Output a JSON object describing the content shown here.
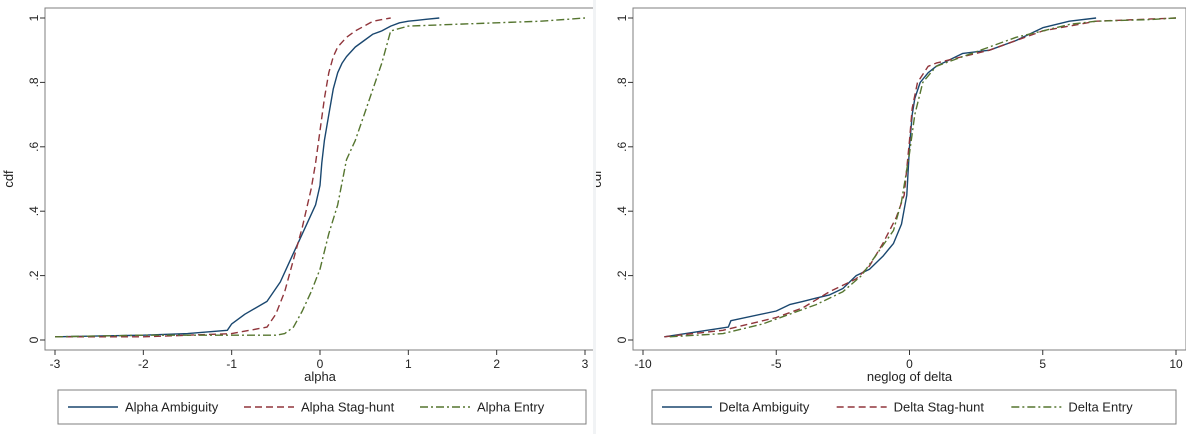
{
  "chart_data": [
    {
      "type": "line",
      "title": "",
      "xlabel": "alpha",
      "ylabel": "cdf",
      "xlim": [
        -3,
        3
      ],
      "ylim": [
        0,
        1
      ],
      "xticks": [
        "-3",
        "-2",
        "-1",
        "0",
        "1",
        "2",
        "3"
      ],
      "yticks": [
        "0",
        ".2",
        ".4",
        ".6",
        ".8",
        "1"
      ],
      "grid": false,
      "legend_position": "bottom",
      "series": [
        {
          "name": "Alpha Ambiguity",
          "color": "#1a476f",
          "dash": "solid",
          "x": [
            -3.0,
            -2.0,
            -1.5,
            -1.05,
            -1.0,
            -0.85,
            -0.6,
            -0.45,
            -0.35,
            -0.25,
            -0.15,
            -0.05,
            0.0,
            0.02,
            0.05,
            0.1,
            0.15,
            0.2,
            0.25,
            0.3,
            0.4,
            0.5,
            0.6,
            0.7,
            0.8,
            0.9,
            1.0,
            1.1,
            1.2,
            1.35
          ],
          "y": [
            0.01,
            0.015,
            0.02,
            0.03,
            0.05,
            0.08,
            0.12,
            0.18,
            0.24,
            0.3,
            0.36,
            0.42,
            0.48,
            0.55,
            0.62,
            0.7,
            0.78,
            0.83,
            0.86,
            0.88,
            0.91,
            0.93,
            0.95,
            0.96,
            0.975,
            0.985,
            0.99,
            0.993,
            0.996,
            1.0
          ]
        },
        {
          "name": "Alpha Stag-hunt",
          "color": "#90353b",
          "dash": "dash",
          "x": [
            -3.0,
            -2.0,
            -1.0,
            -0.6,
            -0.5,
            -0.4,
            -0.3,
            -0.2,
            -0.1,
            -0.05,
            0.0,
            0.05,
            0.1,
            0.15,
            0.2,
            0.3,
            0.4,
            0.5,
            0.6,
            0.7,
            0.8
          ],
          "y": [
            0.01,
            0.01,
            0.02,
            0.04,
            0.08,
            0.15,
            0.25,
            0.35,
            0.47,
            0.55,
            0.65,
            0.75,
            0.83,
            0.88,
            0.91,
            0.94,
            0.96,
            0.975,
            0.99,
            0.995,
            1.0
          ]
        },
        {
          "name": "Alpha Entry",
          "color": "#55752f",
          "dash": "dashdot",
          "x": [
            -3.0,
            -2.0,
            -1.0,
            -0.5,
            -0.4,
            -0.3,
            -0.2,
            -0.1,
            0.0,
            0.1,
            0.2,
            0.3,
            0.4,
            0.5,
            0.6,
            0.7,
            0.8,
            1.0,
            1.5,
            2.0,
            2.5,
            3.0
          ],
          "y": [
            0.01,
            0.015,
            0.015,
            0.015,
            0.02,
            0.04,
            0.09,
            0.15,
            0.22,
            0.33,
            0.42,
            0.56,
            0.62,
            0.7,
            0.78,
            0.86,
            0.96,
            0.975,
            0.98,
            0.985,
            0.99,
            1.0
          ]
        }
      ]
    },
    {
      "type": "line",
      "title": "",
      "xlabel": "neglog of delta",
      "ylabel": "cdf",
      "xlim": [
        -10,
        10
      ],
      "ylim": [
        0,
        1
      ],
      "xticks": [
        "-10",
        "-5",
        "0",
        "5",
        "10"
      ],
      "yticks": [
        "0",
        ".2",
        ".4",
        ".6",
        ".8",
        "1"
      ],
      "grid": false,
      "legend_position": "bottom",
      "series": [
        {
          "name": "Delta Ambiguity",
          "color": "#1a476f",
          "dash": "solid",
          "x": [
            -9.2,
            -8.0,
            -6.8,
            -6.7,
            -5.0,
            -4.5,
            -4.0,
            -3.5,
            -3.0,
            -2.5,
            -2.0,
            -1.5,
            -1.0,
            -0.6,
            -0.3,
            -0.1,
            0.0,
            0.1,
            0.2,
            0.4,
            0.7,
            1.0,
            1.5,
            2.0,
            3.0,
            4.0,
            5.0,
            6.0,
            7.0
          ],
          "y": [
            0.01,
            0.025,
            0.04,
            0.06,
            0.09,
            0.11,
            0.12,
            0.13,
            0.14,
            0.16,
            0.2,
            0.22,
            0.26,
            0.3,
            0.36,
            0.45,
            0.6,
            0.7,
            0.75,
            0.8,
            0.83,
            0.85,
            0.87,
            0.89,
            0.9,
            0.93,
            0.97,
            0.99,
            1.0
          ]
        },
        {
          "name": "Delta Stag-hunt",
          "color": "#90353b",
          "dash": "dash",
          "x": [
            -9.2,
            -7.0,
            -5.0,
            -4.0,
            -3.0,
            -2.5,
            -2.0,
            -1.5,
            -1.0,
            -0.5,
            -0.2,
            0.0,
            0.1,
            0.3,
            0.7,
            1.0,
            2.0,
            3.0,
            4.0,
            5.0,
            7.0,
            10.0
          ],
          "y": [
            0.01,
            0.03,
            0.07,
            0.1,
            0.15,
            0.17,
            0.19,
            0.23,
            0.3,
            0.38,
            0.45,
            0.62,
            0.72,
            0.8,
            0.85,
            0.86,
            0.88,
            0.9,
            0.93,
            0.96,
            0.99,
            1.0
          ]
        },
        {
          "name": "Delta Entry",
          "color": "#55752f",
          "dash": "dashdot",
          "x": [
            -9.0,
            -7.0,
            -5.5,
            -4.5,
            -3.5,
            -2.5,
            -1.8,
            -1.2,
            -0.6,
            -0.3,
            0.0,
            0.2,
            0.5,
            1.0,
            2.0,
            3.0,
            4.0,
            5.0,
            6.0,
            7.0,
            9.0,
            10.0
          ],
          "y": [
            0.01,
            0.02,
            0.05,
            0.08,
            0.11,
            0.15,
            0.2,
            0.27,
            0.34,
            0.43,
            0.58,
            0.7,
            0.8,
            0.85,
            0.88,
            0.91,
            0.94,
            0.96,
            0.98,
            0.99,
            0.995,
            1.0
          ]
        }
      ]
    }
  ]
}
